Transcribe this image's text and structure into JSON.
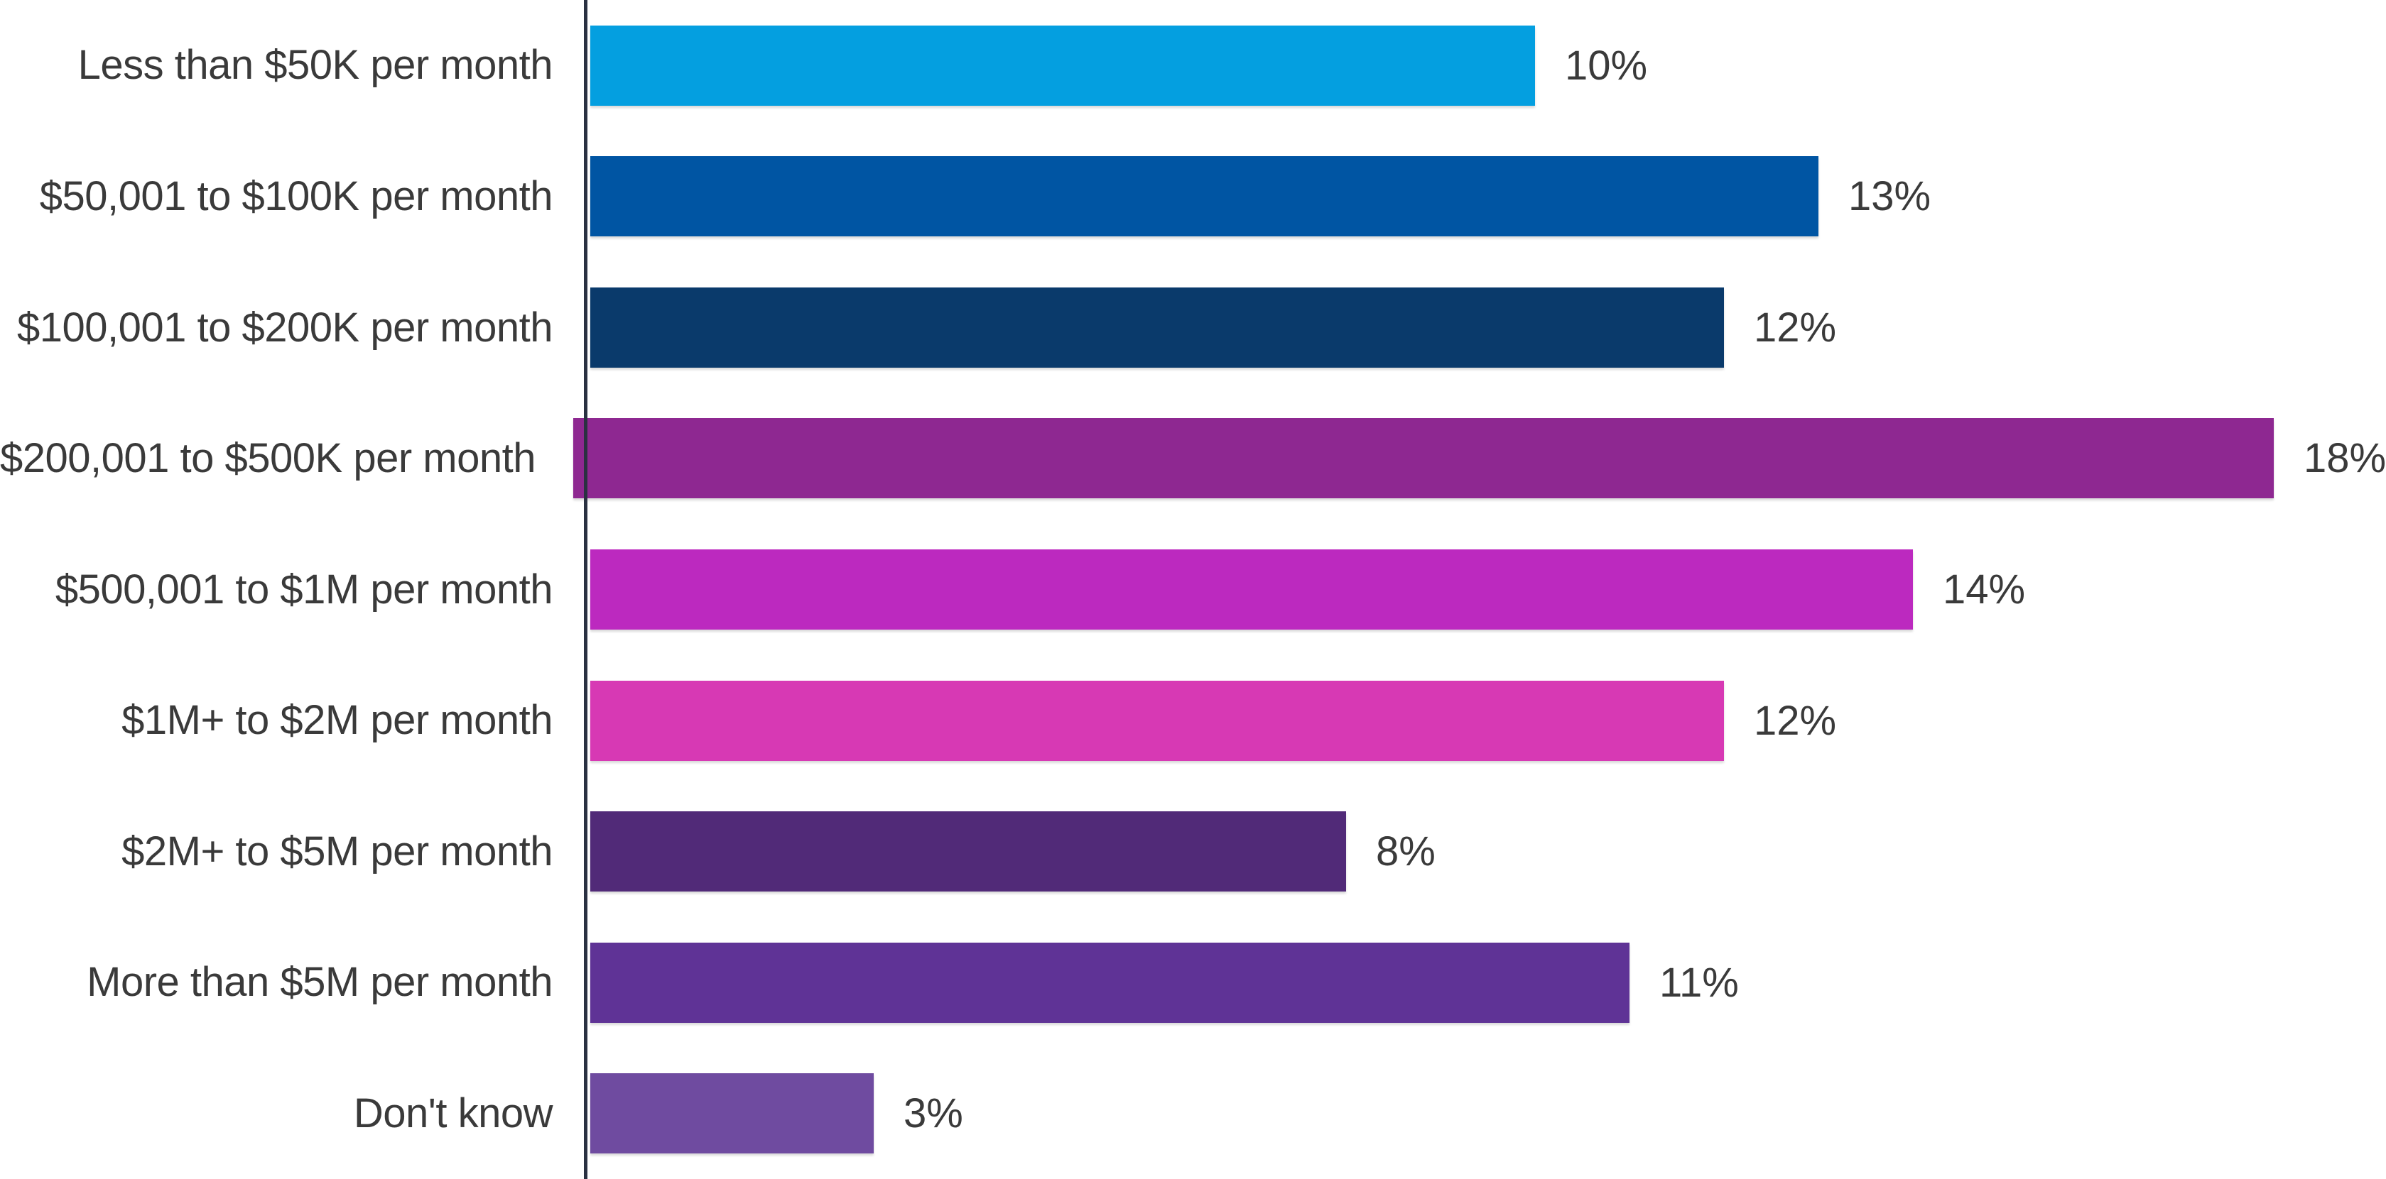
{
  "chart_data": {
    "type": "bar",
    "orientation": "horizontal",
    "categories": [
      "Less than $50K per month",
      "$50,001 to $100K per month",
      "$100,001 to $200K per month",
      "$200,001 to $500K per month",
      "$500,001 to $1M per month",
      "$1M+ to $2M per month",
      "$2M+ to $5M per month",
      "More than $5M per month",
      "Don't know"
    ],
    "values": [
      10,
      13,
      12,
      18,
      14,
      12,
      8,
      11,
      3
    ],
    "value_labels": [
      "10%",
      "13%",
      "12%",
      "18%",
      "14%",
      "12%",
      "8%",
      "11%",
      "3%"
    ],
    "value_suffix": "%",
    "bar_colors": [
      "#049fe0",
      "#0055a3",
      "#0a3a6b",
      "#8e2891",
      "#bc29bf",
      "#d739b4",
      "#512a78",
      "#5f3396",
      "#6f4ba0"
    ],
    "axis_color": "#2a3142",
    "text_color": "#3a3a3a",
    "background": "#ffffff",
    "xlim": [
      0,
      18
    ],
    "grid": false,
    "legend": false,
    "title": "",
    "xlabel": "",
    "ylabel": ""
  }
}
